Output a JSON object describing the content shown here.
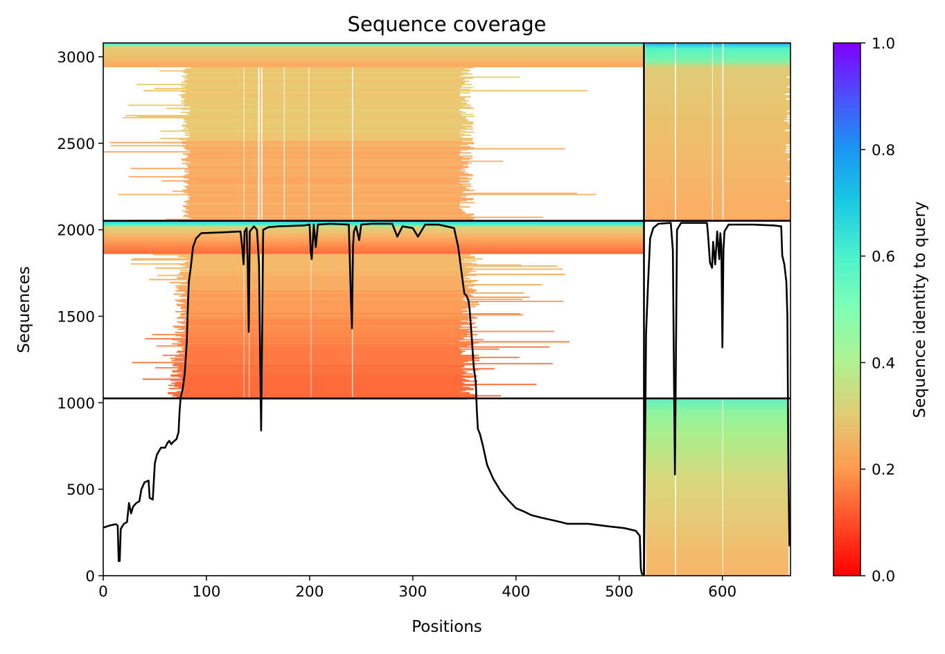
{
  "chart_data": {
    "type": "heatmap",
    "title": "Sequence coverage",
    "xlabel": "Positions",
    "ylabel": "Sequences",
    "xlim": [
      0,
      666
    ],
    "ylim": [
      0,
      3080
    ],
    "x_ticks": [
      0,
      100,
      200,
      300,
      400,
      500,
      600
    ],
    "y_ticks": [
      0,
      500,
      1000,
      1500,
      2000,
      2500,
      3000
    ],
    "colorbar": {
      "label": "Sequence identity to query",
      "colormap": "rainbow_r",
      "range": [
        0,
        1
      ],
      "ticks": [
        0.0,
        0.2,
        0.4,
        0.6,
        0.8,
        1.0
      ],
      "tick_labels": [
        "0.0",
        "0.2",
        "0.4",
        "0.6",
        "0.8",
        "1.0"
      ]
    },
    "grid": false,
    "chain_boundary_positions": [
      524
    ],
    "msa_block_boundaries_sequences": [
      1025,
      2052
    ],
    "blocks": [
      {
        "seq_range": [
          2052,
          3080
        ],
        "pos_range": [
          0,
          524
        ],
        "identity_top": 0.65,
        "identity_bottom": 0.22
      },
      {
        "seq_range": [
          2052,
          3080
        ],
        "pos_range": [
          524,
          666
        ],
        "identity_top": 0.65,
        "identity_bottom": 0.24
      },
      {
        "seq_range": [
          1025,
          2052
        ],
        "pos_range": [
          0,
          524
        ],
        "identity_top": 0.68,
        "identity_bottom": 0.15
      },
      {
        "seq_range": [
          0,
          1025
        ],
        "pos_range": [
          524,
          666
        ],
        "identity_top": 0.52,
        "identity_bottom": 0.23
      }
    ],
    "series": [
      {
        "name": "coverage",
        "color": "#000000",
        "points": [
          [
            0,
            278
          ],
          [
            6,
            290
          ],
          [
            12,
            298
          ],
          [
            14,
            290
          ],
          [
            15,
            85
          ],
          [
            16,
            85
          ],
          [
            17,
            270
          ],
          [
            20,
            300
          ],
          [
            23,
            310
          ],
          [
            25,
            420
          ],
          [
            27,
            360
          ],
          [
            29,
            400
          ],
          [
            32,
            420
          ],
          [
            35,
            430
          ],
          [
            37,
            500
          ],
          [
            40,
            540
          ],
          [
            44,
            550
          ],
          [
            45,
            450
          ],
          [
            48,
            440
          ],
          [
            50,
            650
          ],
          [
            52,
            700
          ],
          [
            56,
            740
          ],
          [
            60,
            740
          ],
          [
            62,
            765
          ],
          [
            64,
            780
          ],
          [
            66,
            760
          ],
          [
            68,
            775
          ],
          [
            71,
            790
          ],
          [
            73,
            830
          ],
          [
            74,
            950
          ],
          [
            75,
            1030
          ],
          [
            77,
            1080
          ],
          [
            79,
            1170
          ],
          [
            81,
            1350
          ],
          [
            82,
            1550
          ],
          [
            83,
            1700
          ],
          [
            85,
            1790
          ],
          [
            87,
            1900
          ],
          [
            90,
            1950
          ],
          [
            95,
            1980
          ],
          [
            115,
            1985
          ],
          [
            133,
            1990
          ],
          [
            135,
            1880
          ],
          [
            136,
            1800
          ],
          [
            137,
            1990
          ],
          [
            139,
            2010
          ],
          [
            140,
            1800
          ],
          [
            141,
            1410
          ],
          [
            142,
            1990
          ],
          [
            146,
            2020
          ],
          [
            149,
            2000
          ],
          [
            151,
            1800
          ],
          [
            152,
            1300
          ],
          [
            153,
            840
          ],
          [
            154,
            1400
          ],
          [
            155,
            2000
          ],
          [
            160,
            2015
          ],
          [
            170,
            2020
          ],
          [
            195,
            2025
          ],
          [
            200,
            2030
          ],
          [
            201,
            1880
          ],
          [
            202,
            1830
          ],
          [
            204,
            2030
          ],
          [
            206,
            1900
          ],
          [
            208,
            2030
          ],
          [
            220,
            2035
          ],
          [
            238,
            2030
          ],
          [
            240,
            1600
          ],
          [
            241,
            1430
          ],
          [
            242,
            1900
          ],
          [
            243,
            1990
          ],
          [
            245,
            2020
          ],
          [
            248,
            1940
          ],
          [
            250,
            2030
          ],
          [
            260,
            2035
          ],
          [
            280,
            2035
          ],
          [
            285,
            1960
          ],
          [
            290,
            2020
          ],
          [
            300,
            2010
          ],
          [
            305,
            1960
          ],
          [
            312,
            2030
          ],
          [
            325,
            2030
          ],
          [
            340,
            2010
          ],
          [
            344,
            1900
          ],
          [
            348,
            1720
          ],
          [
            350,
            1630
          ],
          [
            352,
            1620
          ],
          [
            354,
            1590
          ],
          [
            355,
            1540
          ],
          [
            357,
            1390
          ],
          [
            359,
            1210
          ],
          [
            361,
            1120
          ],
          [
            362,
            960
          ],
          [
            363,
            850
          ],
          [
            365,
            820
          ],
          [
            368,
            750
          ],
          [
            372,
            640
          ],
          [
            378,
            560
          ],
          [
            385,
            490
          ],
          [
            392,
            440
          ],
          [
            400,
            390
          ],
          [
            408,
            370
          ],
          [
            415,
            350
          ],
          [
            425,
            335
          ],
          [
            440,
            315
          ],
          [
            450,
            300
          ],
          [
            470,
            300
          ],
          [
            490,
            285
          ],
          [
            505,
            275
          ],
          [
            516,
            260
          ],
          [
            520,
            230
          ],
          [
            521,
            40
          ],
          [
            522,
            10
          ],
          [
            523,
            10
          ],
          [
            524,
            10
          ],
          [
            526,
            1400
          ],
          [
            528,
            1700
          ],
          [
            530,
            1950
          ],
          [
            533,
            2010
          ],
          [
            538,
            2035
          ],
          [
            550,
            2040
          ],
          [
            552,
            1880
          ],
          [
            553,
            1200
          ],
          [
            554,
            585
          ],
          [
            555,
            1300
          ],
          [
            556,
            2000
          ],
          [
            560,
            2040
          ],
          [
            585,
            2040
          ],
          [
            586,
            1980
          ],
          [
            588,
            1810
          ],
          [
            590,
            1780
          ],
          [
            591,
            1930
          ],
          [
            593,
            1800
          ],
          [
            595,
            1990
          ],
          [
            597,
            1830
          ],
          [
            598,
            1980
          ],
          [
            599,
            1900
          ],
          [
            600,
            1320
          ],
          [
            601,
            1880
          ],
          [
            602,
            1990
          ],
          [
            606,
            2030
          ],
          [
            615,
            2030
          ],
          [
            630,
            2030
          ],
          [
            650,
            2025
          ],
          [
            657,
            2020
          ],
          [
            658,
            1850
          ],
          [
            660,
            1800
          ],
          [
            662,
            1700
          ],
          [
            663,
            1500
          ],
          [
            664,
            600
          ],
          [
            665,
            175
          ],
          [
            666,
            175
          ]
        ]
      }
    ]
  }
}
